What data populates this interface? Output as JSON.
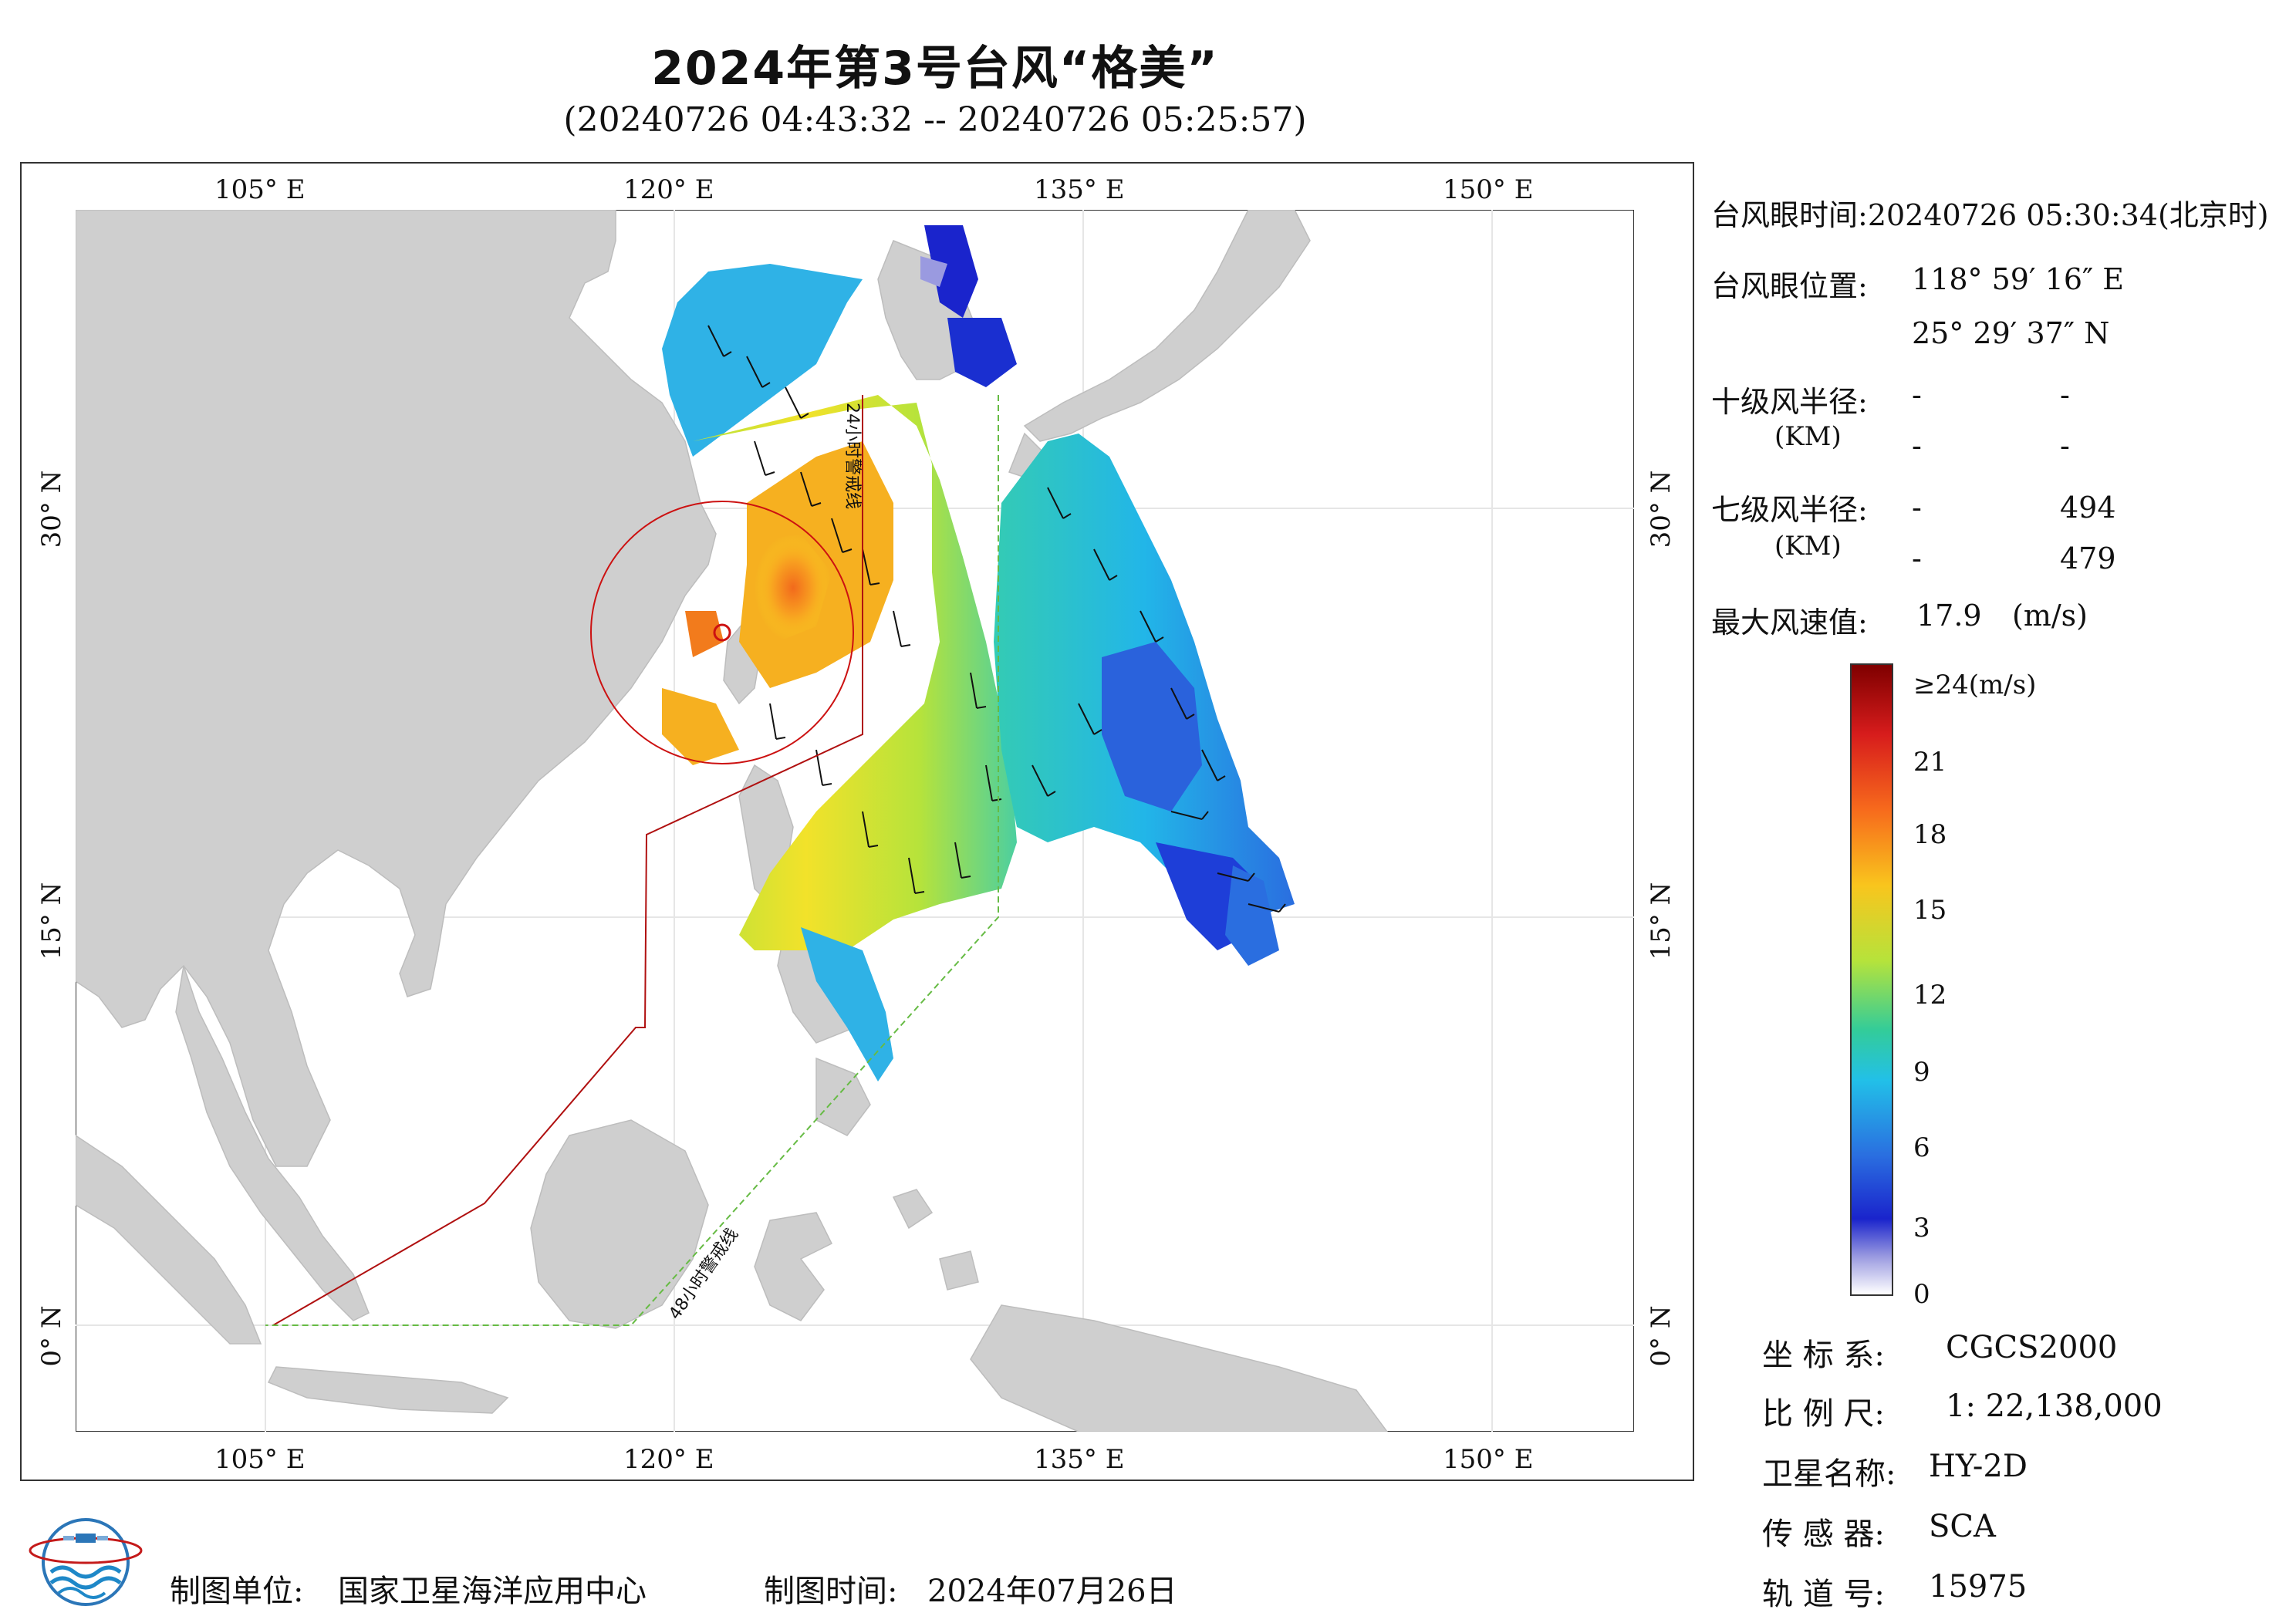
{
  "title": "2024年第3号台风“格美”",
  "subtitle": "(20240726 04:43:32 -- 20240726 05:25:57)",
  "map": {
    "lon_ticks": [
      {
        "id": "105",
        "label": "105° E"
      },
      {
        "id": "120",
        "label": "120° E"
      },
      {
        "id": "135",
        "label": "135° E"
      },
      {
        "id": "150",
        "label": "150° E"
      }
    ],
    "lat_ticks": [
      {
        "id": "30",
        "label": "30° N"
      },
      {
        "id": "15",
        "label": "15° N"
      },
      {
        "id": "0",
        "label": "0° N"
      }
    ],
    "warning_24h_label": "24小时警戒线",
    "warning_48h_label": "48小时警戒线",
    "colors": {
      "land": "#cfcfcf",
      "sea": "#ffffff",
      "line_24h": "#b01010",
      "line_48h": "#66bb44",
      "typhoon_ring": "#cc1111"
    }
  },
  "info": {
    "eye_time_label": "台风眼时间:",
    "eye_time_value": "20240726 05:30:34(北京时)",
    "eye_pos_label": "台风眼位置:",
    "eye_lon": "118° 59′ 16″ E",
    "eye_lat": "25° 29′ 37″ N",
    "r10_label": "十级风半径:",
    "r10_unit": "(KM)",
    "r10_values": [
      "-",
      "-",
      "-",
      "-"
    ],
    "r7_label": "七级风半径:",
    "r7_unit": "(KM)",
    "r7_values": [
      "-",
      "494",
      "-",
      "479"
    ],
    "max_wind_label": "最大风速值:",
    "max_wind_value": "17.9",
    "max_wind_unit": "(m/s)"
  },
  "colorbar": {
    "labels": [
      "≥24(m/s)",
      "21",
      "18",
      "15",
      "12",
      "9",
      "6",
      "3",
      "0"
    ],
    "colors": [
      "#7f0000",
      "#d71c1c",
      "#f76a1c",
      "#f9c51d",
      "#b6e33b",
      "#33cc99",
      "#22c0e8",
      "#2a6ee0",
      "#1a24cc",
      "#9a9ae0",
      "#ffffff"
    ]
  },
  "meta": {
    "crs_label": "坐 标 系:",
    "crs_value": "CGCS2000",
    "scale_label": "比 例 尺:",
    "scale_value": "1: 22,138,000",
    "satellite_label": "卫星名称:",
    "satellite_value": "HY-2D",
    "sensor_label": "传 感 器:",
    "sensor_value": "SCA",
    "orbit_label": "轨 道 号:",
    "orbit_value": "15975"
  },
  "footer": {
    "producer_label": "制图单位:",
    "producer_value": "国家卫星海洋应用中心",
    "date_label": "制图时间:",
    "date_value": "2024年07月26日"
  }
}
